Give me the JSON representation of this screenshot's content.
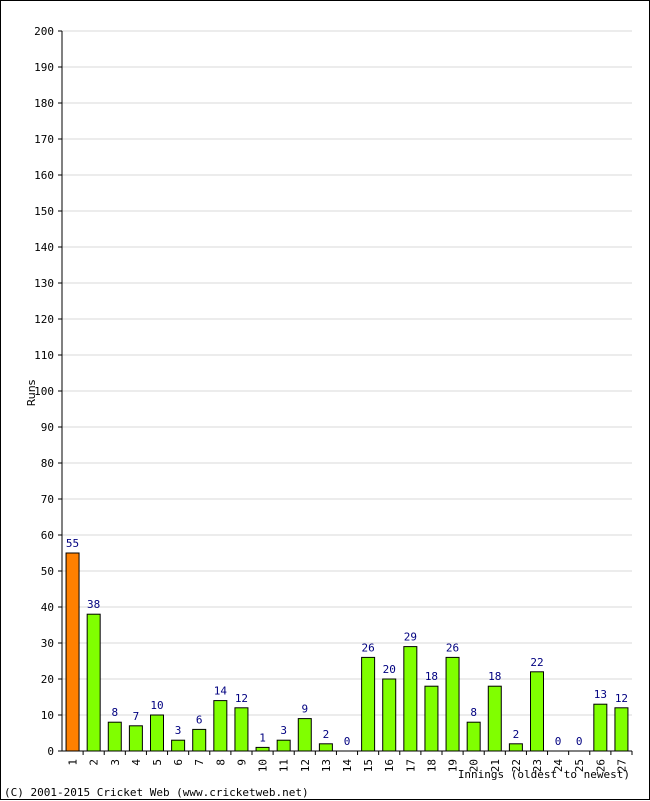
{
  "chart_data": {
    "type": "bar",
    "categories": [
      "1",
      "2",
      "3",
      "4",
      "5",
      "6",
      "7",
      "8",
      "9",
      "10",
      "11",
      "12",
      "13",
      "14",
      "15",
      "16",
      "17",
      "18",
      "19",
      "20",
      "21",
      "22",
      "23",
      "24",
      "25",
      "26",
      "27"
    ],
    "values": [
      55,
      38,
      8,
      7,
      10,
      3,
      6,
      14,
      12,
      1,
      3,
      9,
      2,
      0,
      26,
      20,
      29,
      18,
      26,
      8,
      18,
      2,
      22,
      0,
      0,
      13,
      12
    ],
    "highlight_index": 0,
    "xlabel": "Innings (oldest to newest)",
    "ylabel": "Runs",
    "ylim": [
      0,
      200
    ],
    "ytick_step": 10,
    "grid": true,
    "colors": {
      "bar": "#80ff00",
      "highlight": "#ff8000",
      "label": "#000080",
      "grid": "#d8d8d8"
    }
  },
  "footer": {
    "copyright": "(C) 2001-2015 Cricket Web (www.cricketweb.net)"
  }
}
